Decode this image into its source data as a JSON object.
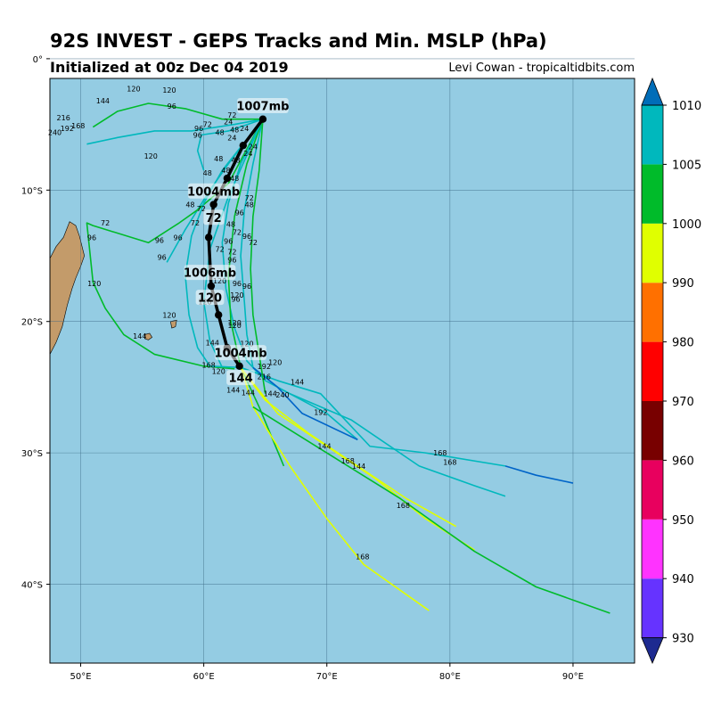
{
  "header": {
    "title": "92S INVEST - GEPS Tracks and Min. MSLP (hPa)",
    "subtitle": "Initialized at 00z Dec 04 2019",
    "credit": "Levi Cowan - tropicaltidbits.com"
  },
  "colors": {
    "ocean": "#94cce3",
    "land": "#c39b6a",
    "grid": "#3c6a84",
    "mean_track": "#000000"
  },
  "chart_data": {
    "type": "line",
    "title": "92S INVEST - GEPS Tracks and Min. MSLP (hPa)",
    "xlim": [
      47.5,
      95
    ],
    "ylim": [
      -46,
      -1.5
    ],
    "x_ticks": [
      50,
      60,
      70,
      80,
      90
    ],
    "x_tick_labels": [
      "50°E",
      "60°E",
      "70°E",
      "80°E",
      "90°E"
    ],
    "y_ticks": [
      0,
      -10,
      -20,
      -30,
      -40
    ],
    "y_tick_labels": [
      "0°",
      "10°S",
      "20°S",
      "30°S",
      "40°S"
    ],
    "grid": true,
    "colorbar": {
      "levels": [
        930,
        940,
        950,
        960,
        970,
        980,
        990,
        1000,
        1005,
        1010
      ],
      "tick_labels": [
        "930",
        "940",
        "950",
        "960",
        "970",
        "980",
        "990",
        "1000",
        "1005",
        "1010"
      ],
      "colors": [
        "#6633ff",
        "#ff33ff",
        "#e8005e",
        "#780000",
        "#ff0000",
        "#ff7000",
        "#e0ff00",
        "#00bb2a",
        "#00b8bd"
      ],
      "extend_low": "#1d2a90",
      "extend_high": "#006db8"
    },
    "mean_track": {
      "points": [
        [
          64.8,
          -4.6
        ],
        [
          63.2,
          -6.6
        ],
        [
          61.9,
          -9.1
        ],
        [
          60.8,
          -11.1
        ],
        [
          60.4,
          -13.6
        ],
        [
          60.6,
          -17.3
        ],
        [
          61.2,
          -19.5
        ],
        [
          61.9,
          -22.0
        ],
        [
          62.9,
          -23.4
        ]
      ],
      "labels": [
        {
          "text": "1007mb",
          "lon": 64.8,
          "lat": -3.6
        },
        {
          "text": "1004mb",
          "lon": 60.8,
          "lat": -10.1
        },
        {
          "text": "72",
          "lon": 60.8,
          "lat": -12.1
        },
        {
          "text": "1006mb",
          "lon": 60.5,
          "lat": -16.3
        },
        {
          "text": "120",
          "lon": 60.5,
          "lat": -18.2
        },
        {
          "text": "1004mb",
          "lon": 63.0,
          "lat": -22.4
        },
        {
          "text": "144",
          "lon": 63.0,
          "lat": -24.3
        }
      ]
    },
    "series": [
      {
        "color": "#00b8bd",
        "points": [
          [
            64.8,
            -4.6
          ],
          [
            62.5,
            -5.0
          ],
          [
            59.0,
            -5.5
          ],
          [
            56.0,
            -5.5
          ],
          [
            53.0,
            -6.0
          ],
          [
            50.5,
            -6.5
          ]
        ]
      },
      {
        "color": "#00bb2a",
        "points": [
          [
            64.8,
            -4.6
          ],
          [
            61.5,
            -4.6
          ],
          [
            58.5,
            -3.8
          ],
          [
            55.5,
            -3.4
          ],
          [
            53.0,
            -4.0
          ],
          [
            51.0,
            -5.2
          ]
        ]
      },
      {
        "color": "#00b8bd",
        "points": [
          [
            64.8,
            -4.6
          ],
          [
            62.0,
            -5.5
          ],
          [
            59.8,
            -5.8
          ],
          [
            59.5,
            -7.0
          ],
          [
            60.0,
            -8.5
          ]
        ]
      },
      {
        "color": "#00b8bd",
        "points": [
          [
            64.8,
            -4.6
          ],
          [
            62.0,
            -8.0
          ],
          [
            60.5,
            -10.0
          ],
          [
            58.5,
            -13.0
          ],
          [
            57.0,
            -15.5
          ]
        ]
      },
      {
        "color": "#00bb2a",
        "points": [
          [
            64.8,
            -4.6
          ],
          [
            62.0,
            -9.5
          ],
          [
            59.5,
            -11.5
          ],
          [
            58.0,
            -12.5
          ],
          [
            55.5,
            -14.0
          ],
          [
            51.0,
            -12.7
          ],
          [
            50.5,
            -12.5
          ],
          [
            51.0,
            -17.0
          ],
          [
            52.0,
            -19.0
          ],
          [
            53.5,
            -21.0
          ],
          [
            56.0,
            -22.5
          ],
          [
            60.0,
            -23.4
          ],
          [
            62.5,
            -23.6
          ]
        ]
      },
      {
        "color": "#00b8bd",
        "points": [
          [
            64.8,
            -4.6
          ],
          [
            61.5,
            -8.5
          ],
          [
            60.0,
            -11.0
          ],
          [
            59.0,
            -13.5
          ],
          [
            58.5,
            -16.5
          ],
          [
            58.8,
            -19.5
          ],
          [
            59.5,
            -22.0
          ],
          [
            60.5,
            -23.4
          ],
          [
            63.0,
            -23.5
          ],
          [
            66.0,
            -24.5
          ],
          [
            69.5,
            -25.5
          ],
          [
            73.5,
            -29.5
          ],
          [
            78.0,
            -30.0
          ],
          [
            84.5,
            -31.0
          ]
        ]
      },
      {
        "color": "#00b8bd",
        "points": [
          [
            64.8,
            -4.6
          ],
          [
            63.0,
            -8.0
          ],
          [
            62.0,
            -11.0
          ],
          [
            61.5,
            -14.0
          ],
          [
            61.8,
            -17.5
          ],
          [
            62.5,
            -20.5
          ],
          [
            63.5,
            -23.0
          ],
          [
            65.0,
            -24.5
          ],
          [
            67.0,
            -25.5
          ],
          [
            72.0,
            -27.5
          ],
          [
            77.5,
            -31.0
          ],
          [
            82.0,
            -32.5
          ],
          [
            84.5,
            -33.3
          ]
        ]
      },
      {
        "color": "#0064c8",
        "points": [
          [
            84.5,
            -31.0
          ],
          [
            87.0,
            -31.7
          ],
          [
            90.0,
            -32.3
          ]
        ]
      },
      {
        "color": "#00b8bd",
        "points": [
          [
            64.8,
            -4.6
          ],
          [
            64.0,
            -8.0
          ],
          [
            63.3,
            -11.5
          ],
          [
            63.0,
            -15.0
          ],
          [
            63.3,
            -18.5
          ],
          [
            63.5,
            -21.0
          ],
          [
            64.0,
            -23.5
          ],
          [
            66.0,
            -25.0
          ],
          [
            70.0,
            -27.0
          ],
          [
            72.5,
            -29.0
          ]
        ]
      },
      {
        "color": "#0064c8",
        "points": [
          [
            64.0,
            -23.5
          ],
          [
            66.0,
            -25.0
          ],
          [
            68.0,
            -27.0
          ],
          [
            72.5,
            -29.0
          ]
        ]
      },
      {
        "color": "#00bb2a",
        "points": [
          [
            64.8,
            -4.6
          ],
          [
            63.5,
            -8.0
          ],
          [
            62.5,
            -12.0
          ],
          [
            62.0,
            -16.5
          ],
          [
            62.2,
            -20.0
          ],
          [
            63.0,
            -23.5
          ],
          [
            64.5,
            -26.5
          ],
          [
            66.5,
            -31.0
          ]
        ]
      },
      {
        "color": "#e0ff00",
        "points": [
          [
            63.0,
            -23.4
          ],
          [
            64.0,
            -26.5
          ],
          [
            67.0,
            -31.0
          ],
          [
            70.0,
            -35.0
          ],
          [
            73.0,
            -38.5
          ],
          [
            78.3,
            -42.0
          ]
        ]
      },
      {
        "color": "#e0ff00",
        "points": [
          [
            62.9,
            -23.4
          ],
          [
            65.0,
            -26.0
          ],
          [
            68.5,
            -28.5
          ],
          [
            72.5,
            -31.0
          ],
          [
            76.5,
            -33.5
          ],
          [
            80.5,
            -35.6
          ]
        ]
      },
      {
        "color": "#e0ff00",
        "points": [
          [
            62.9,
            -23.4
          ],
          [
            66.0,
            -27.0
          ],
          [
            70.0,
            -29.5
          ],
          [
            74.0,
            -32.0
          ],
          [
            78.0,
            -35.0
          ],
          [
            82.0,
            -37.4
          ]
        ]
      },
      {
        "color": "#00bb2a",
        "points": [
          [
            64.0,
            -26.5
          ],
          [
            70.0,
            -30.0
          ],
          [
            76.0,
            -33.5
          ],
          [
            82.0,
            -37.5
          ],
          [
            87.0,
            -40.2
          ],
          [
            93.0,
            -42.2
          ]
        ]
      },
      {
        "color": "#00bb2a",
        "points": [
          [
            64.8,
            -4.6
          ],
          [
            64.5,
            -8.5
          ],
          [
            64.0,
            -12.0
          ],
          [
            63.8,
            -16.0
          ],
          [
            64.0,
            -19.5
          ],
          [
            64.5,
            -22.5
          ],
          [
            65.0,
            -25.5
          ]
        ]
      },
      {
        "color": "#00b8bd",
        "points": [
          [
            64.8,
            -4.6
          ],
          [
            62.0,
            -10.5
          ],
          [
            60.5,
            -14.5
          ],
          [
            60.0,
            -18.5
          ],
          [
            60.5,
            -21.5
          ],
          [
            61.5,
            -23.5
          ]
        ]
      }
    ],
    "hour_labels": [
      {
        "text": "24",
        "lon": 62.0,
        "lat": -5.0
      },
      {
        "text": "24",
        "lon": 63.3,
        "lat": -5.5
      },
      {
        "text": "24",
        "lon": 62.3,
        "lat": -6.2
      },
      {
        "text": "24",
        "lon": 64.0,
        "lat": -6.9
      },
      {
        "text": "24",
        "lon": 63.6,
        "lat": -7.4
      },
      {
        "text": "48",
        "lon": 61.3,
        "lat": -5.8
      },
      {
        "text": "48",
        "lon": 62.5,
        "lat": -5.6
      },
      {
        "text": "48",
        "lon": 61.2,
        "lat": -7.8
      },
      {
        "text": "48",
        "lon": 62.6,
        "lat": -7.9
      },
      {
        "text": "48",
        "lon": 60.3,
        "lat": -8.9
      },
      {
        "text": "48",
        "lon": 61.8,
        "lat": -8.7
      },
      {
        "text": "48",
        "lon": 62.5,
        "lat": -9.3
      },
      {
        "text": "48",
        "lon": 58.9,
        "lat": -11.3
      },
      {
        "text": "48",
        "lon": 63.7,
        "lat": -11.3
      },
      {
        "text": "48",
        "lon": 62.2,
        "lat": -12.8
      },
      {
        "text": "72",
        "lon": 62.3,
        "lat": -4.5
      },
      {
        "text": "72",
        "lon": 60.3,
        "lat": -5.2
      },
      {
        "text": "72",
        "lon": 52.0,
        "lat": -12.7
      },
      {
        "text": "72",
        "lon": 59.8,
        "lat": -11.6
      },
      {
        "text": "72",
        "lon": 63.7,
        "lat": -10.8
      },
      {
        "text": "72",
        "lon": 59.3,
        "lat": -12.7
      },
      {
        "text": "72",
        "lon": 62.7,
        "lat": -13.4
      },
      {
        "text": "72",
        "lon": 64.0,
        "lat": -14.2
      },
      {
        "text": "72",
        "lon": 61.3,
        "lat": -14.7
      },
      {
        "text": "72",
        "lon": 62.3,
        "lat": -14.9
      },
      {
        "text": "96",
        "lon": 59.6,
        "lat": -5.5
      },
      {
        "text": "96",
        "lon": 59.5,
        "lat": -6.0
      },
      {
        "text": "96",
        "lon": 57.4,
        "lat": -3.8
      },
      {
        "text": "96",
        "lon": 50.9,
        "lat": -13.8
      },
      {
        "text": "96",
        "lon": 56.4,
        "lat": -14.0
      },
      {
        "text": "96",
        "lon": 57.9,
        "lat": -13.8
      },
      {
        "text": "96",
        "lon": 56.6,
        "lat": -15.3
      },
      {
        "text": "96",
        "lon": 62.9,
        "lat": -11.9
      },
      {
        "text": "96",
        "lon": 62.0,
        "lat": -14.1
      },
      {
        "text": "96",
        "lon": 63.5,
        "lat": -13.7
      },
      {
        "text": "96",
        "lon": 62.3,
        "lat": -15.5
      },
      {
        "text": "96",
        "lon": 62.7,
        "lat": -17.3
      },
      {
        "text": "96",
        "lon": 63.5,
        "lat": -17.5
      },
      {
        "text": "96",
        "lon": 62.6,
        "lat": -18.5
      },
      {
        "text": "120",
        "lon": 54.3,
        "lat": -2.5
      },
      {
        "text": "120",
        "lon": 57.2,
        "lat": -2.6
      },
      {
        "text": "120",
        "lon": 55.7,
        "lat": -7.6
      },
      {
        "text": "120",
        "lon": 51.1,
        "lat": -17.3
      },
      {
        "text": "120",
        "lon": 57.2,
        "lat": -19.7
      },
      {
        "text": "120",
        "lon": 60.1,
        "lat": -18.7
      },
      {
        "text": "120",
        "lon": 61.3,
        "lat": -17.1
      },
      {
        "text": "120",
        "lon": 62.7,
        "lat": -18.2
      },
      {
        "text": "120",
        "lon": 62.5,
        "lat": -20.5
      },
      {
        "text": "120",
        "lon": 63.5,
        "lat": -21.9
      },
      {
        "text": "120",
        "lon": 65.8,
        "lat": -23.3
      },
      {
        "text": "120",
        "lon": 61.2,
        "lat": -24.0
      },
      {
        "text": "120",
        "lon": 62.5,
        "lat": -20.3
      },
      {
        "text": "144",
        "lon": 51.8,
        "lat": -3.4
      },
      {
        "text": "144",
        "lon": 54.8,
        "lat": -21.3
      },
      {
        "text": "144",
        "lon": 60.7,
        "lat": -21.8
      },
      {
        "text": "144",
        "lon": 62.4,
        "lat": -25.4
      },
      {
        "text": "144",
        "lon": 63.6,
        "lat": -25.6
      },
      {
        "text": "144",
        "lon": 65.4,
        "lat": -25.7
      },
      {
        "text": "144",
        "lon": 67.6,
        "lat": -24.8
      },
      {
        "text": "144",
        "lon": 69.8,
        "lat": -29.7
      },
      {
        "text": "144",
        "lon": 72.6,
        "lat": -31.2
      },
      {
        "text": "168",
        "lon": 49.8,
        "lat": -5.3
      },
      {
        "text": "168",
        "lon": 60.4,
        "lat": -23.5
      },
      {
        "text": "168",
        "lon": 71.7,
        "lat": -30.8
      },
      {
        "text": "168",
        "lon": 79.2,
        "lat": -30.2
      },
      {
        "text": "168",
        "lon": 80.0,
        "lat": -30.9
      },
      {
        "text": "168",
        "lon": 76.2,
        "lat": -34.2
      },
      {
        "text": "168",
        "lon": 72.9,
        "lat": -38.1
      },
      {
        "text": "192",
        "lon": 48.9,
        "lat": -5.5
      },
      {
        "text": "192",
        "lon": 64.9,
        "lat": -23.6
      },
      {
        "text": "192",
        "lon": 69.5,
        "lat": -27.1
      },
      {
        "text": "216",
        "lon": 48.6,
        "lat": -4.7
      },
      {
        "text": "216",
        "lon": 64.9,
        "lat": -24.4
      },
      {
        "text": "240",
        "lon": 47.9,
        "lat": -5.8
      },
      {
        "text": "240",
        "lon": 66.4,
        "lat": -25.8
      }
    ],
    "land": [
      {
        "name": "madagascar",
        "points": [
          [
            47.5,
            -15.2
          ],
          [
            48.0,
            -14.3
          ],
          [
            48.6,
            -13.6
          ],
          [
            49.1,
            -12.4
          ],
          [
            49.6,
            -12.7
          ],
          [
            49.9,
            -13.5
          ],
          [
            50.3,
            -15.0
          ],
          [
            50.0,
            -15.8
          ],
          [
            49.6,
            -16.7
          ],
          [
            49.3,
            -17.5
          ],
          [
            48.9,
            -18.8
          ],
          [
            48.5,
            -20.4
          ],
          [
            48.0,
            -21.6
          ],
          [
            47.5,
            -22.5
          ]
        ]
      },
      {
        "name": "reunion",
        "points": [
          [
            55.2,
            -21.0
          ],
          [
            55.6,
            -20.9
          ],
          [
            55.8,
            -21.2
          ],
          [
            55.5,
            -21.4
          ],
          [
            55.2,
            -21.3
          ]
        ]
      },
      {
        "name": "mauritius",
        "points": [
          [
            57.3,
            -20.0
          ],
          [
            57.8,
            -19.9
          ],
          [
            57.7,
            -20.4
          ],
          [
            57.4,
            -20.5
          ]
        ]
      }
    ]
  }
}
